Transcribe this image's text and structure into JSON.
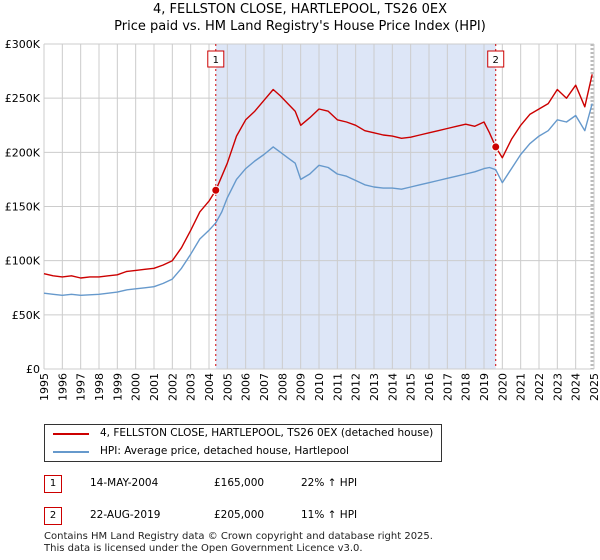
{
  "header": {
    "title": "4, FELLSTON CLOSE, HARTLEPOOL, TS26 0EX",
    "subtitle": "Price paid vs. HM Land Registry's House Price Index (HPI)"
  },
  "colors": {
    "property_line": "#cc0000",
    "hpi_line": "#6699cc",
    "shade": "#dde6f7",
    "grid": "#cccccc"
  },
  "chart_data": {
    "type": "line",
    "title": "Price paid vs. HM Land Registry's House Price Index (HPI)",
    "xlabel": "",
    "ylabel": "",
    "xlim": [
      1995,
      2025
    ],
    "ylim": [
      0,
      300000
    ],
    "grid": true,
    "x_ticks": [
      "1995",
      "1996",
      "1997",
      "1998",
      "1999",
      "2000",
      "2001",
      "2002",
      "2003",
      "2004",
      "2005",
      "2006",
      "2007",
      "2008",
      "2009",
      "2010",
      "2011",
      "2012",
      "2013",
      "2014",
      "2015",
      "2016",
      "2017",
      "2018",
      "2019",
      "2020",
      "2021",
      "2022",
      "2023",
      "2024",
      "2025"
    ],
    "y_ticks": [
      {
        "value": 0,
        "label": "£0"
      },
      {
        "value": 50000,
        "label": "£50K"
      },
      {
        "value": 100000,
        "label": "£100K"
      },
      {
        "value": 150000,
        "label": "£150K"
      },
      {
        "value": 200000,
        "label": "£200K"
      },
      {
        "value": 250000,
        "label": "£250K"
      },
      {
        "value": 300000,
        "label": "£300K"
      }
    ],
    "shaded_range": [
      2004.37,
      2019.64
    ],
    "series": [
      {
        "name": "4, FELLSTON CLOSE, HARTLEPOOL, TS26 0EX (detached house)",
        "color": "#cc0000",
        "x": [
          1995.0,
          1995.5,
          1996.0,
          1996.5,
          1997.0,
          1997.5,
          1998.0,
          1998.5,
          1999.0,
          1999.5,
          2000.0,
          2000.5,
          2001.0,
          2001.5,
          2002.0,
          2002.5,
          2003.0,
          2003.5,
          2004.0,
          2004.37,
          2004.7,
          2005.0,
          2005.5,
          2006.0,
          2006.5,
          2007.0,
          2007.5,
          2007.9,
          2008.3,
          2008.7,
          2009.0,
          2009.5,
          2010.0,
          2010.5,
          2011.0,
          2011.5,
          2012.0,
          2012.5,
          2013.0,
          2013.5,
          2014.0,
          2014.5,
          2015.0,
          2015.5,
          2016.0,
          2016.5,
          2017.0,
          2017.5,
          2018.0,
          2018.5,
          2019.0,
          2019.3,
          2019.64,
          2020.0,
          2020.5,
          2021.0,
          2021.5,
          2022.0,
          2022.5,
          2023.0,
          2023.5,
          2024.0,
          2024.5,
          2024.9
        ],
        "values": [
          88000,
          86000,
          85000,
          86000,
          84000,
          85000,
          85000,
          86000,
          87000,
          90000,
          91000,
          92000,
          93000,
          96000,
          100000,
          112000,
          128000,
          145000,
          155000,
          165000,
          178000,
          190000,
          215000,
          230000,
          238000,
          248000,
          258000,
          252000,
          245000,
          238000,
          225000,
          232000,
          240000,
          238000,
          230000,
          228000,
          225000,
          220000,
          218000,
          216000,
          215000,
          213000,
          214000,
          216000,
          218000,
          220000,
          222000,
          224000,
          226000,
          224000,
          228000,
          218000,
          205000,
          195000,
          212000,
          225000,
          235000,
          240000,
          245000,
          258000,
          250000,
          262000,
          242000,
          272000
        ]
      },
      {
        "name": "HPI: Average price, detached house, Hartlepool",
        "color": "#6699cc",
        "x": [
          1995.0,
          1995.5,
          1996.0,
          1996.5,
          1997.0,
          1997.5,
          1998.0,
          1998.5,
          1999.0,
          1999.5,
          2000.0,
          2000.5,
          2001.0,
          2001.5,
          2002.0,
          2002.5,
          2003.0,
          2003.5,
          2004.0,
          2004.37,
          2004.7,
          2005.0,
          2005.5,
          2006.0,
          2006.5,
          2007.0,
          2007.5,
          2007.9,
          2008.3,
          2008.7,
          2009.0,
          2009.5,
          2010.0,
          2010.5,
          2011.0,
          2011.5,
          2012.0,
          2012.5,
          2013.0,
          2013.5,
          2014.0,
          2014.5,
          2015.0,
          2015.5,
          2016.0,
          2016.5,
          2017.0,
          2017.5,
          2018.0,
          2018.5,
          2019.0,
          2019.3,
          2019.64,
          2020.0,
          2020.5,
          2021.0,
          2021.5,
          2022.0,
          2022.5,
          2023.0,
          2023.5,
          2024.0,
          2024.5,
          2024.9
        ],
        "values": [
          70000,
          69000,
          68000,
          69000,
          68000,
          68500,
          69000,
          70000,
          71000,
          73000,
          74000,
          75000,
          76000,
          79000,
          83000,
          93000,
          106000,
          120000,
          128000,
          135000,
          145000,
          158000,
          175000,
          185000,
          192000,
          198000,
          205000,
          200000,
          195000,
          190000,
          175000,
          180000,
          188000,
          186000,
          180000,
          178000,
          174000,
          170000,
          168000,
          167000,
          167000,
          166000,
          168000,
          170000,
          172000,
          174000,
          176000,
          178000,
          180000,
          182000,
          185000,
          186000,
          184000,
          172000,
          185000,
          198000,
          208000,
          215000,
          220000,
          230000,
          228000,
          234000,
          220000,
          245000
        ]
      }
    ],
    "markers": [
      {
        "label": "1",
        "x": 2004.37,
        "value": 165000
      },
      {
        "label": "2",
        "x": 2019.64,
        "value": 205000
      }
    ]
  },
  "legend": {
    "items": [
      {
        "label": "4, FELLSTON CLOSE, HARTLEPOOL, TS26 0EX (detached house)",
        "color": "#cc0000"
      },
      {
        "label": "HPI: Average price, detached house, Hartlepool",
        "color": "#6699cc"
      }
    ]
  },
  "transactions": [
    {
      "num": "1",
      "date": "14-MAY-2004",
      "price": "£165,000",
      "hpi": "22% ↑ HPI"
    },
    {
      "num": "2",
      "date": "22-AUG-2019",
      "price": "£205,000",
      "hpi": "11% ↑ HPI"
    }
  ],
  "footer": {
    "line1": "Contains HM Land Registry data © Crown copyright and database right 2025.",
    "line2": "This data is licensed under the Open Government Licence v3.0."
  }
}
